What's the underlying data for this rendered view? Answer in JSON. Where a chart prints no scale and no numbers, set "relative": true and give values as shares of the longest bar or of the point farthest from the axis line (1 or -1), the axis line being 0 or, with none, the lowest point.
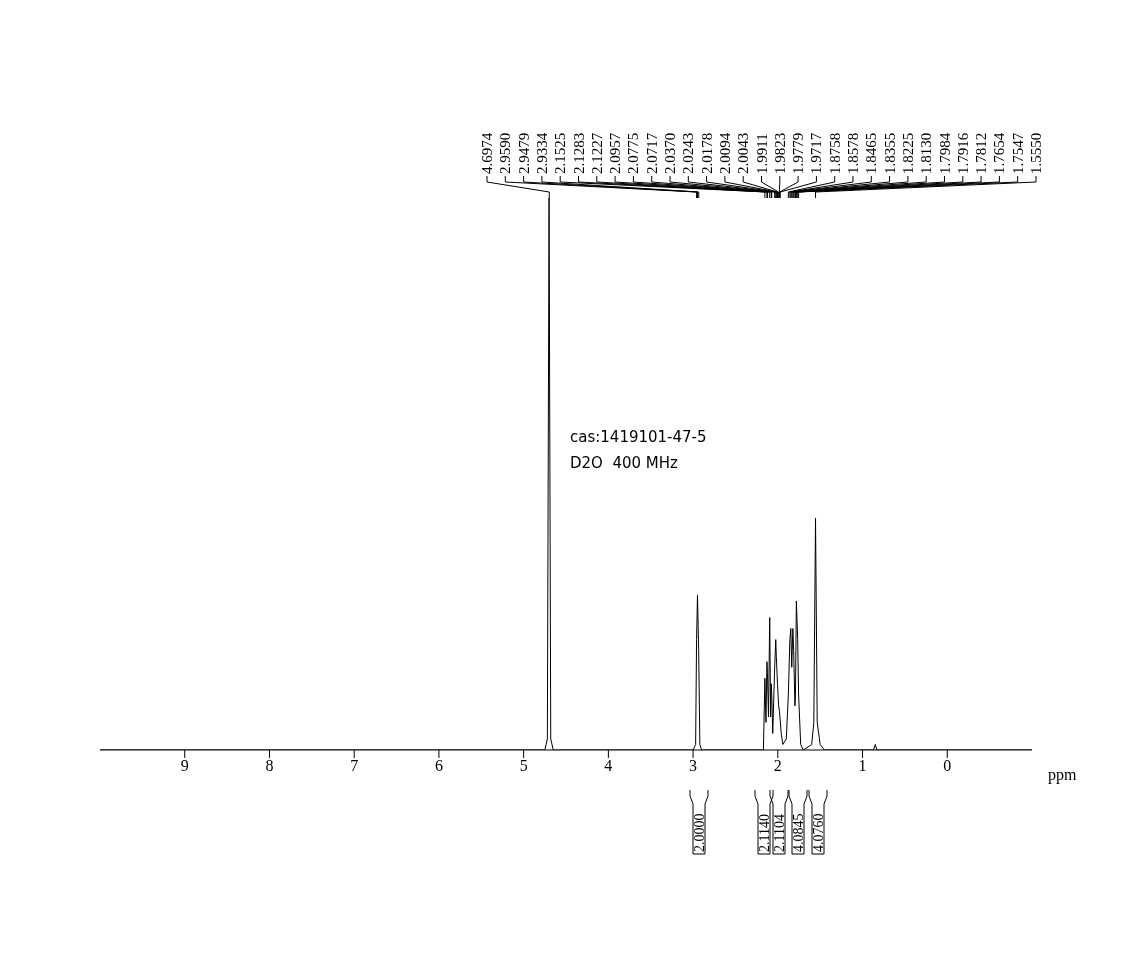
{
  "chart_data": {
    "type": "line",
    "relative": true,
    "xlabel": "ppm",
    "xlim": [
      10,
      -1
    ],
    "xticks": [
      9,
      8,
      7,
      6,
      5,
      4,
      3,
      2,
      1,
      0
    ],
    "grid": false,
    "legend": false,
    "marker": "none",
    "line_style": "solid",
    "series": [
      {
        "color": "#000000",
        "x": [
          10,
          4.75,
          4.72,
          4.7,
          4.68,
          4.65,
          3.0,
          2.97,
          2.959,
          2.948,
          2.934,
          2.92,
          2.9,
          2.17,
          2.1525,
          2.14,
          2.1283,
          2.1227,
          2.11,
          2.0957,
          2.085,
          2.0775,
          2.0717,
          2.06,
          2.037,
          2.0243,
          2.0178,
          2.0094,
          2.0043,
          1.99,
          1.98,
          1.96,
          1.94,
          1.9,
          1.8758,
          1.8578,
          1.8465,
          1.8355,
          1.8225,
          1.813,
          1.7984,
          1.7916,
          1.7812,
          1.7654,
          1.7547,
          1.73,
          1.7,
          1.6,
          1.575,
          1.555,
          1.535,
          1.5,
          1.45,
          0.87,
          0.85,
          0.83,
          -1
        ],
        "values": [
          0,
          0,
          0.02,
          1,
          0.02,
          0,
          0,
          0.01,
          0.2,
          0.28,
          0.18,
          0.01,
          0,
          0,
          0.13,
          0.05,
          0.16,
          0.14,
          0.06,
          0.24,
          0.06,
          0.12,
          0.1,
          0.03,
          0.15,
          0.2,
          0.17,
          0.14,
          0.12,
          0.08,
          0.07,
          0.03,
          0.01,
          0.02,
          0.1,
          0.2,
          0.22,
          0.15,
          0.22,
          0.18,
          0.08,
          0.1,
          0.27,
          0.2,
          0.1,
          0.01,
          0,
          0.01,
          0.05,
          0.42,
          0.05,
          0.01,
          0,
          0,
          0.01,
          0,
          0
        ]
      }
    ],
    "annotations": [
      "cas:1419101-47-5",
      "D2O  400 MHz",
      {
        "text": "4.6974",
        "x": 4.6974
      },
      {
        "text": "2.9590",
        "x": 2.959
      },
      {
        "text": "2.9479",
        "x": 2.9479
      },
      {
        "text": "2.9334",
        "x": 2.9334
      },
      {
        "text": "2.1525",
        "x": 2.1525
      },
      {
        "text": "2.1283",
        "x": 2.1283
      },
      {
        "text": "2.1227",
        "x": 2.1227
      },
      {
        "text": "2.0957",
        "x": 2.0957
      },
      {
        "text": "2.0775",
        "x": 2.0775
      },
      {
        "text": "2.0717",
        "x": 2.0717
      },
      {
        "text": "2.0370",
        "x": 2.037
      },
      {
        "text": "2.0243",
        "x": 2.0243
      },
      {
        "text": "2.0178",
        "x": 2.0178
      },
      {
        "text": "2.0094",
        "x": 2.0094
      },
      {
        "text": "2.0043",
        "x": 2.0043
      },
      {
        "text": "1.9911",
        "x": 1.9911
      },
      {
        "text": "1.9823",
        "x": 1.9823
      },
      {
        "text": "1.9779",
        "x": 1.9779
      },
      {
        "text": "1.9717",
        "x": 1.9717
      },
      {
        "text": "1.8758",
        "x": 1.8758
      },
      {
        "text": "1.8578",
        "x": 1.8578
      },
      {
        "text": "1.8465",
        "x": 1.8465
      },
      {
        "text": "1.8355",
        "x": 1.8355
      },
      {
        "text": "1.8225",
        "x": 1.8225
      },
      {
        "text": "1.8130",
        "x": 1.813
      },
      {
        "text": "1.7984",
        "x": 1.7984
      },
      {
        "text": "1.7916",
        "x": 1.7916
      },
      {
        "text": "1.7812",
        "x": 1.7812
      },
      {
        "text": "1.7654",
        "x": 1.7654
      },
      {
        "text": "1.7547",
        "x": 1.7547
      },
      {
        "text": "1.5550",
        "x": 1.555
      },
      "2.0000",
      "2.1140",
      "2.1104",
      "4.0845",
      "4.0760"
    ]
  }
}
